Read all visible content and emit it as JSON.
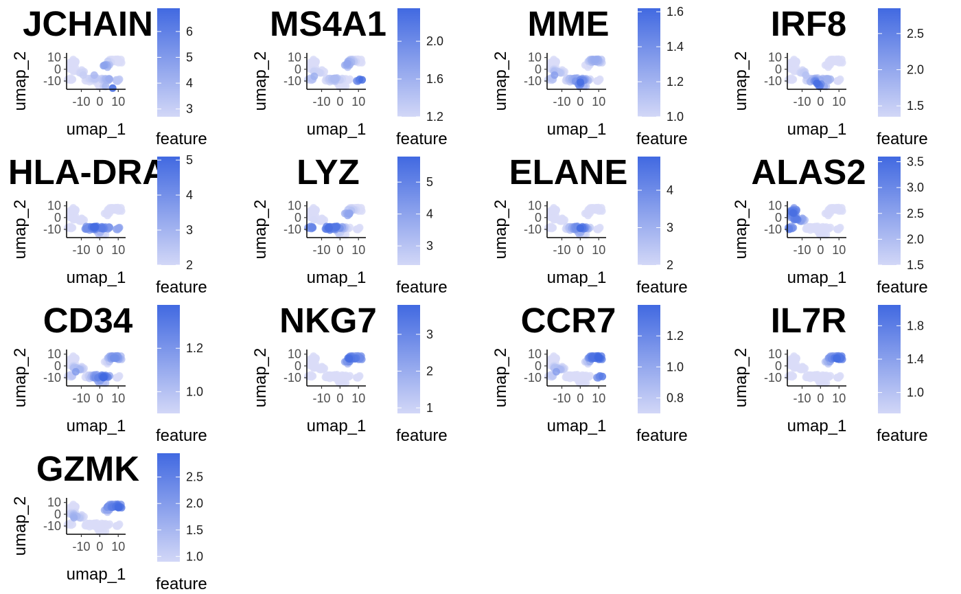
{
  "colors": {
    "low": "#E6E6FA",
    "high": "#4169E1",
    "axis": "#000000",
    "tick_text": "#4d4d4d"
  },
  "chart_data": [
    {
      "type": "scatter",
      "title": "JCHAIN",
      "xlabel": "umap_1",
      "ylabel": "umap_2",
      "x_ticks": [
        "-10",
        "0",
        "10"
      ],
      "y_ticks": [
        "10",
        "0",
        "-10"
      ],
      "legend_title": "feature",
      "legend_range": [
        2.7,
        6.9
      ],
      "legend_ticks": [
        "6",
        "5",
        "4",
        "3"
      ],
      "hotspots": [
        [
          7,
          -16,
          6.9
        ],
        [
          2,
          3,
          5.0
        ],
        [
          -3,
          -5,
          4.2
        ],
        [
          -9,
          -5,
          3.5
        ],
        [
          5,
          -8,
          4.6
        ],
        [
          9,
          -9,
          3.8
        ]
      ]
    },
    {
      "type": "scatter",
      "title": "MS4A1",
      "xlabel": "umap_1",
      "ylabel": "umap_2",
      "x_ticks": [
        "-10",
        "0",
        "10"
      ],
      "y_ticks": [
        "10",
        "0",
        "-10"
      ],
      "legend_title": "feature",
      "legend_range": [
        1.2,
        2.35
      ],
      "legend_ticks": [
        "2.0",
        "1.6",
        "1.2"
      ],
      "hotspots": [
        [
          12,
          -9,
          2.3
        ],
        [
          4,
          5,
          1.8
        ],
        [
          -14,
          -6,
          1.7
        ],
        [
          -3,
          -8,
          1.6
        ]
      ]
    },
    {
      "type": "scatter",
      "title": "MME",
      "xlabel": "umap_1",
      "ylabel": "umap_2",
      "x_ticks": [
        "-10",
        "0",
        "10"
      ],
      "y_ticks": [
        "10",
        "0",
        "-10"
      ],
      "legend_title": "feature",
      "legend_range": [
        1.0,
        1.62
      ],
      "legend_ticks": [
        "1.6",
        "1.4",
        "1.2",
        "1.0"
      ],
      "hotspots": [
        [
          0,
          -11,
          1.6
        ],
        [
          -14,
          -5,
          1.35
        ],
        [
          8,
          8,
          1.3
        ],
        [
          -3,
          -8,
          1.3
        ]
      ]
    },
    {
      "type": "scatter",
      "title": "IRF8",
      "xlabel": "umap_1",
      "ylabel": "umap_2",
      "x_ticks": [
        "-10",
        "0",
        "10"
      ],
      "y_ticks": [
        "10",
        "0",
        "-10"
      ],
      "legend_title": "feature",
      "legend_range": [
        1.35,
        2.85
      ],
      "legend_ticks": [
        "2.5",
        "2.0",
        "1.5"
      ],
      "hotspots": [
        [
          -2,
          -12,
          2.8
        ],
        [
          -1,
          -14,
          2.6
        ],
        [
          4,
          -8,
          2.0
        ],
        [
          -8,
          -5,
          1.8
        ]
      ]
    },
    {
      "type": "scatter",
      "title": "HLA-DRA",
      "xlabel": "umap_1",
      "ylabel": "umap_2",
      "x_ticks": [
        "-10",
        "0",
        "10"
      ],
      "y_ticks": [
        "10",
        "0",
        "-10"
      ],
      "legend_title": "feature",
      "legend_range": [
        2.0,
        5.1
      ],
      "legend_ticks": [
        "5",
        "4",
        "3",
        "2"
      ],
      "hotspots": [
        [
          -3,
          -8,
          5.0
        ],
        [
          1,
          -9,
          4.6
        ],
        [
          -7,
          -9,
          4.2
        ],
        [
          5,
          -8,
          4.0
        ],
        [
          10,
          -9,
          3.6
        ]
      ]
    },
    {
      "type": "scatter",
      "title": "LYZ",
      "xlabel": "umap_1",
      "ylabel": "umap_2",
      "x_ticks": [
        "-10",
        "0",
        "10"
      ],
      "y_ticks": [
        "10",
        "0",
        "-10"
      ],
      "legend_title": "feature",
      "legend_range": [
        2.4,
        5.8
      ],
      "legend_ticks": [
        "5",
        "4",
        "3"
      ],
      "hotspots": [
        [
          -6,
          -9,
          5.6
        ],
        [
          -2,
          -8,
          5.4
        ],
        [
          -15,
          -8,
          5.0
        ],
        [
          5,
          3,
          4.2
        ]
      ]
    },
    {
      "type": "scatter",
      "title": "ELANE",
      "xlabel": "umap_1",
      "ylabel": "umap_2",
      "x_ticks": [
        "-10",
        "0",
        "10"
      ],
      "y_ticks": [
        "10",
        "0",
        "-10"
      ],
      "legend_title": "feature",
      "legend_range": [
        2.0,
        4.9
      ],
      "legend_ticks": [
        "4",
        "3",
        "2"
      ],
      "hotspots": [
        [
          0,
          -9,
          4.8
        ],
        [
          -2,
          -9,
          4.0
        ]
      ]
    },
    {
      "type": "scatter",
      "title": "ALAS2",
      "xlabel": "umap_1",
      "ylabel": "umap_2",
      "x_ticks": [
        "-10",
        "0",
        "10"
      ],
      "y_ticks": [
        "10",
        "0",
        "-10"
      ],
      "legend_title": "feature",
      "legend_range": [
        1.5,
        3.6
      ],
      "legend_ticks": [
        "3.5",
        "3.0",
        "2.5",
        "2.0",
        "1.5"
      ],
      "hotspots": [
        [
          -15,
          4,
          3.5
        ],
        [
          -13,
          -1,
          3.3
        ],
        [
          -17,
          -10,
          3.2
        ],
        [
          -14,
          6,
          3.0
        ]
      ]
    },
    {
      "type": "scatter",
      "title": "CD34",
      "xlabel": "umap_1",
      "ylabel": "umap_2",
      "x_ticks": [
        "-10",
        "0",
        "10"
      ],
      "y_ticks": [
        "10",
        "0",
        "-10"
      ],
      "legend_title": "feature",
      "legend_range": [
        0.9,
        1.4
      ],
      "legend_ticks": [
        "1.2",
        "1.0"
      ],
      "hotspots": [
        [
          2,
          -10,
          1.4
        ],
        [
          -1,
          -10,
          1.3
        ],
        [
          8,
          7,
          1.25
        ],
        [
          -13,
          -5,
          1.2
        ]
      ]
    },
    {
      "type": "scatter",
      "title": "NKG7",
      "xlabel": "umap_1",
      "ylabel": "umap_2",
      "x_ticks": [
        "-10",
        "0",
        "10"
      ],
      "y_ticks": [
        "10",
        "0",
        "-10"
      ],
      "legend_title": "feature",
      "legend_range": [
        0.85,
        3.8
      ],
      "legend_ticks": [
        "3",
        "2",
        "1"
      ],
      "hotspots": [
        [
          5,
          6,
          3.7
        ],
        [
          8,
          6,
          3.4
        ],
        [
          11,
          7,
          3.0
        ]
      ]
    },
    {
      "type": "scatter",
      "title": "CCR7",
      "xlabel": "umap_1",
      "ylabel": "umap_2",
      "x_ticks": [
        "-10",
        "0",
        "10"
      ],
      "y_ticks": [
        "10",
        "0",
        "-10"
      ],
      "legend_title": "feature",
      "legend_range": [
        0.7,
        1.4
      ],
      "legend_ticks": [
        "1.2",
        "1.0",
        "0.8"
      ],
      "hotspots": [
        [
          10,
          7,
          1.4
        ],
        [
          7,
          7,
          1.35
        ],
        [
          12,
          -9,
          1.3
        ],
        [
          -13,
          -5,
          1.1
        ]
      ]
    },
    {
      "type": "scatter",
      "title": "IL7R",
      "xlabel": "umap_1",
      "ylabel": "umap_2",
      "x_ticks": [
        "-10",
        "0",
        "10"
      ],
      "y_ticks": [
        "10",
        "0",
        "-10"
      ],
      "legend_title": "feature",
      "legend_range": [
        0.75,
        2.05
      ],
      "legend_ticks": [
        "1.8",
        "1.4",
        "1.0"
      ],
      "hotspots": [
        [
          9,
          6,
          2.0
        ],
        [
          11,
          7,
          1.9
        ],
        [
          6,
          6,
          1.7
        ]
      ]
    },
    {
      "type": "scatter",
      "title": "GZMK",
      "xlabel": "umap_1",
      "ylabel": "umap_2",
      "x_ticks": [
        "-10",
        "0",
        "10"
      ],
      "y_ticks": [
        "10",
        "0",
        "-10"
      ],
      "legend_title": "feature",
      "legend_range": [
        0.9,
        2.95
      ],
      "legend_ticks": [
        "2.5",
        "2.0",
        "1.5",
        "1.0"
      ],
      "hotspots": [
        [
          10,
          6,
          2.9
        ],
        [
          7,
          6,
          2.6
        ],
        [
          4,
          6,
          2.3
        ],
        [
          -14,
          -3,
          1.8
        ]
      ]
    }
  ]
}
